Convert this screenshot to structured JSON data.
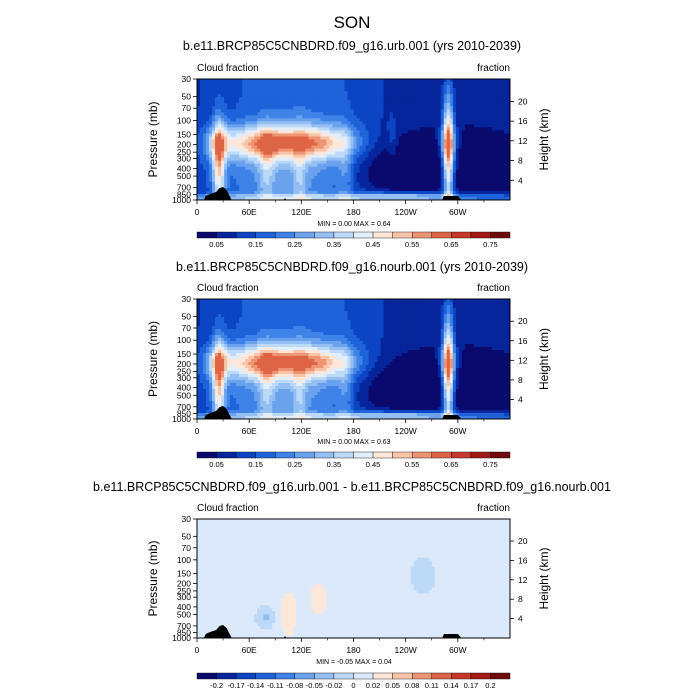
{
  "figure": {
    "title": "SON"
  },
  "colormaps": {
    "seq": [
      "#0a0a6e",
      "#06249b",
      "#0b45c4",
      "#1f63da",
      "#3f83e8",
      "#6aa2ee",
      "#94bff3",
      "#bdd9f8",
      "#e2eefb",
      "#fde7d8",
      "#f8c4a7",
      "#ef9472",
      "#de6446",
      "#c6392a",
      "#a31a17",
      "#710b0b"
    ],
    "div": [
      "#0a0a6e",
      "#06249b",
      "#0b45c4",
      "#1f63da",
      "#3f83e8",
      "#6aa2ee",
      "#94bff3",
      "#bdd9f8",
      "#dbe9fb",
      "#fde7d8",
      "#f8c4a7",
      "#ef9472",
      "#de6446",
      "#c6392a",
      "#a31a17",
      "#710b0b"
    ],
    "terrain": "#000000"
  },
  "chart_data": [
    {
      "type": "heatmap",
      "title": "b.e11.BRCP85C5CNBDRD.f09_g16.urb.001 (yrs 2010-2039)",
      "left_label": "Cloud fraction",
      "right_label": "fraction",
      "ylabel": "Pressure (mb)",
      "ylabel_right": "Height (km)",
      "xticks": [
        "0",
        "60E",
        "120E",
        "180",
        "120W",
        "60W"
      ],
      "yticks": [
        "30",
        "50",
        "70",
        "100",
        "150",
        "200",
        "250",
        "300",
        "400",
        "500",
        "700",
        "850",
        "1000"
      ],
      "yticks_right": [
        "20",
        "16",
        "12",
        "8",
        "4"
      ],
      "min_max": "MIN =   0.00  MAX =   0.64",
      "colorbar_labels": [
        "0.05",
        "0.15",
        "0.25",
        "0.35",
        "0.45",
        "0.55",
        "0.65",
        "0.75"
      ],
      "colorbar_levels": [
        "0.05",
        "0.1",
        "0.15",
        "0.2",
        "0.25",
        "0.3",
        "0.35",
        "0.4",
        "0.45",
        "0.5",
        "0.55",
        "0.6",
        "0.65",
        "0.7",
        "0.75"
      ],
      "x_range": [
        0,
        360
      ],
      "p_range": [
        30,
        1000
      ],
      "colormap": "seq",
      "blobs": [
        {
          "x": 225,
          "p": 200,
          "sx": 4,
          "sp": 80,
          "v": 0.06,
          "sign": 1
        }
      ]
    },
    {
      "type": "heatmap",
      "title": "b.e11.BRCP85C5CNBDRD.f09_g16.nourb.001 (yrs 2010-2039)",
      "left_label": "Cloud fraction",
      "right_label": "fraction",
      "ylabel": "Pressure (mb)",
      "ylabel_right": "Height (km)",
      "xticks": [
        "0",
        "60E",
        "120E",
        "180",
        "120W",
        "60W"
      ],
      "yticks": [
        "30",
        "50",
        "70",
        "100",
        "150",
        "200",
        "250",
        "300",
        "400",
        "500",
        "700",
        "850",
        "1000"
      ],
      "yticks_right": [
        "20",
        "16",
        "12",
        "8",
        "4"
      ],
      "min_max": "MIN =   0.00  MAX =   0.63",
      "colorbar_labels": [
        "0.05",
        "0.15",
        "0.25",
        "0.35",
        "0.45",
        "0.55",
        "0.65",
        "0.75"
      ],
      "colorbar_levels": [
        "0.05",
        "0.1",
        "0.15",
        "0.2",
        "0.25",
        "0.3",
        "0.35",
        "0.4",
        "0.45",
        "0.5",
        "0.55",
        "0.6",
        "0.65",
        "0.7",
        "0.75"
      ],
      "x_range": [
        0,
        360
      ],
      "p_range": [
        30,
        1000
      ],
      "colormap": "seq",
      "blobs": []
    },
    {
      "type": "heatmap",
      "title": "b.e11.BRCP85C5CNBDRD.f09_g16.urb.001 - b.e11.BRCP85C5CNBDRD.f09_g16.nourb.001",
      "left_label": "Cloud fraction",
      "right_label": "fraction",
      "ylabel": "Pressure (mb)",
      "ylabel_right": "Height (km)",
      "xticks": [
        "0",
        "60E",
        "120E",
        "180",
        "120W",
        "60W"
      ],
      "yticks": [
        "30",
        "50",
        "70",
        "100",
        "150",
        "200",
        "250",
        "300",
        "400",
        "500",
        "700",
        "850",
        "1000"
      ],
      "yticks_right": [
        "20",
        "16",
        "12",
        "8",
        "4"
      ],
      "min_max": "MIN =  -0.05  MAX =   0.04",
      "colorbar_labels": [
        "-0.2",
        "-0.17",
        "-0.14",
        "-0.11",
        "-0.08",
        "-0.05",
        "-0.02",
        "0",
        "0.02",
        "0.05",
        "0.08",
        "0.11",
        "0.14",
        "0.17",
        "0.2"
      ],
      "colorbar_levels": [
        "-0.2",
        "-0.17",
        "-0.14",
        "-0.11",
        "-0.08",
        "-0.05",
        "-0.02",
        "0",
        "0.02",
        "0.05",
        "0.08",
        "0.11",
        "0.14",
        "0.17",
        "0.2"
      ],
      "x_range": [
        0,
        360
      ],
      "p_range": [
        30,
        1000
      ],
      "colormap": "div",
      "blobs": [
        {
          "x": 105,
          "p": 500,
          "sx": 10,
          "sp": 300,
          "v": 0.022,
          "sign": 1
        },
        {
          "x": 140,
          "p": 320,
          "sx": 12,
          "sp": 160,
          "v": 0.02,
          "sign": 1
        },
        {
          "x": 80,
          "p": 550,
          "sx": 7,
          "sp": 90,
          "v": -0.03,
          "sign": -1
        },
        {
          "x": 260,
          "p": 160,
          "sx": 8,
          "sp": 40,
          "v": -0.025,
          "sign": -1
        },
        {
          "x": 290,
          "p": 450,
          "sx": 6,
          "sp": 350,
          "v": 0.01,
          "sign": 1
        },
        {
          "x": 30,
          "p": 600,
          "sx": 8,
          "sp": 350,
          "v": 0.008,
          "sign": 1
        }
      ]
    }
  ]
}
